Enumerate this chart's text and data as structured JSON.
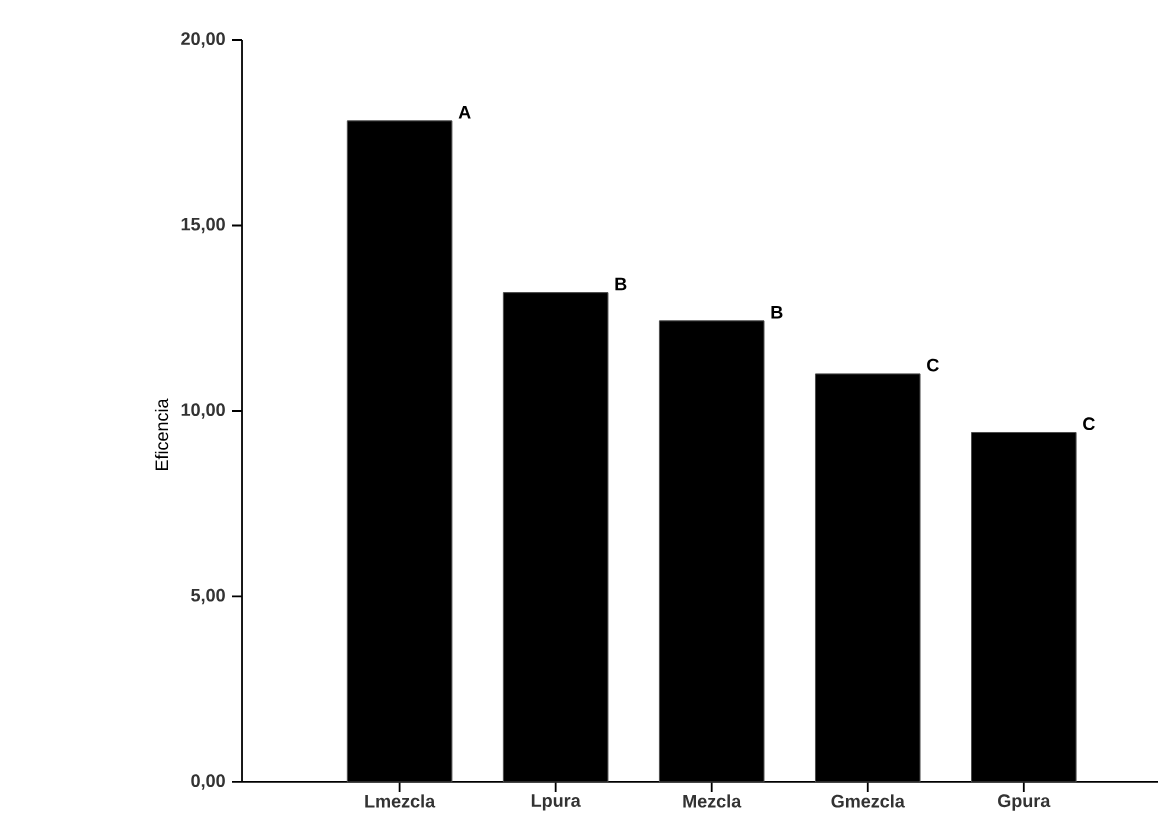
{
  "chart_data": {
    "type": "bar",
    "ylabel": "Eficencia",
    "categories": [
      "Lmezcla",
      "Lpura",
      "Mezcla",
      "Gmezcla",
      "Gpura"
    ],
    "values": [
      17.82,
      13.19,
      12.43,
      11.0,
      9.42
    ],
    "color": "#000000",
    "ylim": [
      0,
      20
    ],
    "yticks": [
      {
        "value": 0,
        "label": "0,00"
      },
      {
        "value": 5,
        "label": "5,00"
      },
      {
        "value": 10,
        "label": "10,00"
      },
      {
        "value": 15,
        "label": "15,00"
      },
      {
        "value": 20,
        "label": "20,00"
      }
    ],
    "grid": false,
    "annotations": [
      "A",
      "B",
      "B",
      "C",
      "C"
    ]
  }
}
